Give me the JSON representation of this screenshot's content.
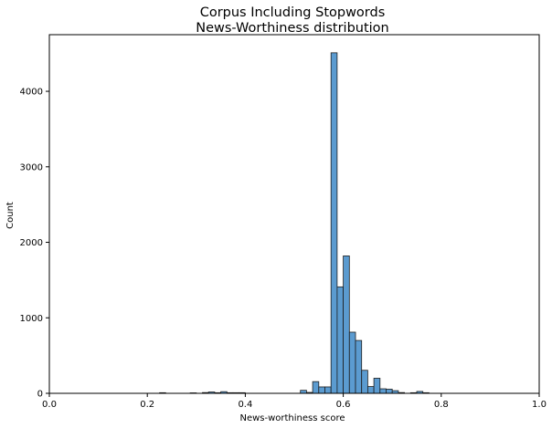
{
  "chart_data": {
    "type": "bar",
    "title_line1": "Corpus Including Stopwords",
    "title_line2": "News-Worthiness distribution",
    "xlabel": "News-worthiness score",
    "ylabel": "Count",
    "xlim": [
      0,
      1
    ],
    "ylim": [
      0,
      4750
    ],
    "x_ticks": [
      0.0,
      0.2,
      0.4,
      0.6,
      0.8,
      1.0
    ],
    "x_tick_labels": [
      "0.0",
      "0.2",
      "0.4",
      "0.6",
      "0.8",
      "1.0"
    ],
    "y_ticks": [
      0,
      1000,
      2000,
      3000,
      4000
    ],
    "y_tick_labels": [
      "0",
      "1000",
      "2000",
      "3000",
      "4000"
    ],
    "bar_color": "#5b9bd0",
    "edge_color": "#1f1f1f",
    "bin_width": 0.0125,
    "bins": [
      {
        "x": 0.225,
        "value": 8
      },
      {
        "x": 0.2875,
        "value": 6
      },
      {
        "x": 0.3125,
        "value": 10
      },
      {
        "x": 0.325,
        "value": 18
      },
      {
        "x": 0.3375,
        "value": 8
      },
      {
        "x": 0.35,
        "value": 22
      },
      {
        "x": 0.3625,
        "value": 8
      },
      {
        "x": 0.375,
        "value": 8
      },
      {
        "x": 0.3875,
        "value": 8
      },
      {
        "x": 0.5125,
        "value": 40
      },
      {
        "x": 0.525,
        "value": 12
      },
      {
        "x": 0.5375,
        "value": 155
      },
      {
        "x": 0.55,
        "value": 85
      },
      {
        "x": 0.5625,
        "value": 85
      },
      {
        "x": 0.575,
        "value": 4510
      },
      {
        "x": 0.5875,
        "value": 1410
      },
      {
        "x": 0.6,
        "value": 1820
      },
      {
        "x": 0.6125,
        "value": 810
      },
      {
        "x": 0.625,
        "value": 700
      },
      {
        "x": 0.6375,
        "value": 305
      },
      {
        "x": 0.65,
        "value": 90
      },
      {
        "x": 0.6625,
        "value": 200
      },
      {
        "x": 0.675,
        "value": 60
      },
      {
        "x": 0.6875,
        "value": 55
      },
      {
        "x": 0.7,
        "value": 35
      },
      {
        "x": 0.7125,
        "value": 10
      },
      {
        "x": 0.7375,
        "value": 8
      },
      {
        "x": 0.75,
        "value": 25
      },
      {
        "x": 0.7625,
        "value": 8
      }
    ]
  }
}
